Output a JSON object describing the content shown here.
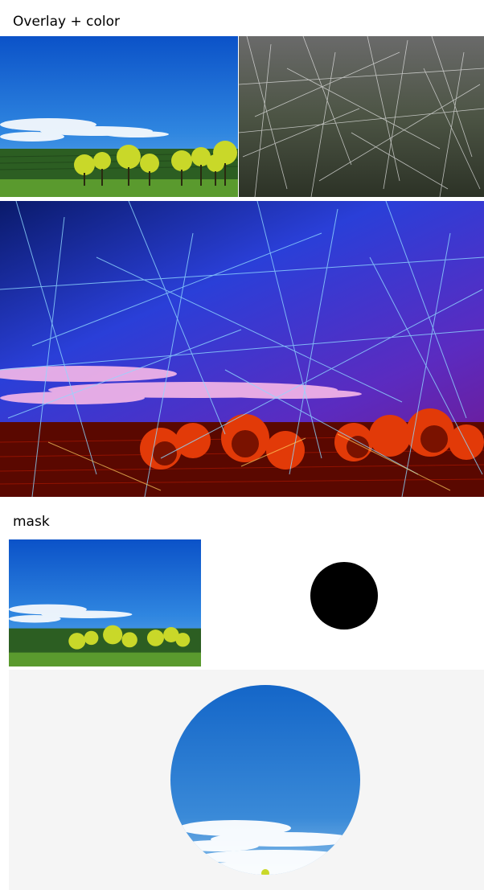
{
  "sections": {
    "overlay": {
      "title": "Overlay + color"
    },
    "mask": {
      "title": "mask"
    }
  },
  "images": {
    "landscape": "landscape-photo",
    "scratches": "scratch-texture",
    "combined": "overlay-color-result",
    "mask_shape": "black-circle-mask",
    "masked": "masked-circle-result"
  }
}
